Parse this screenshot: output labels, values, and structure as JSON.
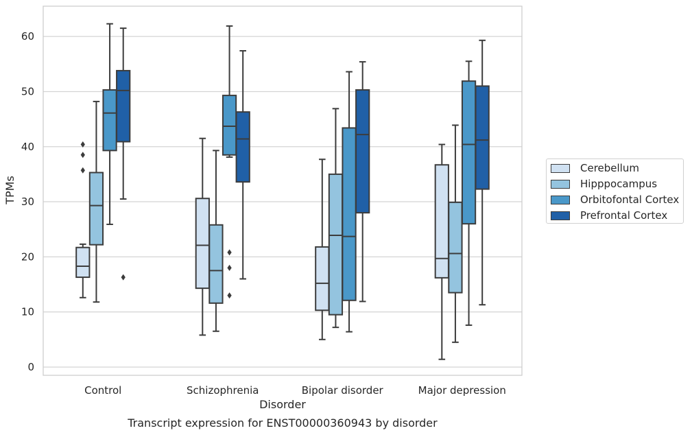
{
  "chart_data": {
    "type": "box",
    "caption": "Transcript expression for ENST00000360943 by disorder",
    "xlabel": "Disorder",
    "ylabel": "TPMs",
    "ylim": [
      -1.5,
      65.5
    ],
    "yticks": [
      0,
      10,
      20,
      30,
      40,
      50,
      60
    ],
    "grid": "horizontal",
    "legend_position": "right",
    "categories": [
      "Control",
      "Schizophrenia",
      "Bipolar disorder",
      "Major depression"
    ],
    "series": [
      {
        "name": "Cerebellum",
        "color": "#d0e1f2",
        "boxes": [
          {
            "whisker_low": 12.6,
            "q1": 16.3,
            "median": 18.3,
            "q3": 21.7,
            "whisker_high": 22.3,
            "outliers": [
              35.7,
              38.5,
              40.4
            ]
          },
          {
            "whisker_low": 5.8,
            "q1": 14.3,
            "median": 22.1,
            "q3": 30.6,
            "whisker_high": 41.5,
            "outliers": []
          },
          {
            "whisker_low": 5.0,
            "q1": 10.3,
            "median": 15.2,
            "q3": 21.8,
            "whisker_high": 37.7,
            "outliers": []
          },
          {
            "whisker_low": 1.4,
            "q1": 16.2,
            "median": 19.7,
            "q3": 36.7,
            "whisker_high": 40.4,
            "outliers": []
          }
        ]
      },
      {
        "name": "Hipppocampus",
        "color": "#94c4df",
        "boxes": [
          {
            "whisker_low": 11.8,
            "q1": 22.2,
            "median": 29.3,
            "q3": 35.3,
            "whisker_high": 48.2,
            "outliers": []
          },
          {
            "whisker_low": 6.5,
            "q1": 11.6,
            "median": 17.5,
            "q3": 25.8,
            "whisker_high": 39.3,
            "outliers": []
          },
          {
            "whisker_low": 7.2,
            "q1": 9.5,
            "median": 23.9,
            "q3": 35.0,
            "whisker_high": 46.9,
            "outliers": []
          },
          {
            "whisker_low": 4.5,
            "q1": 13.5,
            "median": 20.6,
            "q3": 29.9,
            "whisker_high": 43.9,
            "outliers": []
          }
        ]
      },
      {
        "name": "Orbitofontal Cortex",
        "color": "#4a98c9",
        "boxes": [
          {
            "whisker_low": 25.9,
            "q1": 39.3,
            "median": 46.1,
            "q3": 50.3,
            "whisker_high": 62.3,
            "outliers": []
          },
          {
            "whisker_low": 38.1,
            "q1": 38.5,
            "median": 43.7,
            "q3": 49.3,
            "whisker_high": 61.9,
            "outliers": [
              13.0,
              18.0,
              20.8
            ]
          },
          {
            "whisker_low": 6.4,
            "q1": 12.1,
            "median": 23.7,
            "q3": 43.4,
            "whisker_high": 53.6,
            "outliers": []
          },
          {
            "whisker_low": 7.6,
            "q1": 26.0,
            "median": 40.4,
            "q3": 51.9,
            "whisker_high": 55.5,
            "outliers": []
          }
        ]
      },
      {
        "name": "Prefrontal Cortex",
        "color": "#2060a7",
        "boxes": [
          {
            "whisker_low": 30.5,
            "q1": 40.9,
            "median": 50.2,
            "q3": 53.8,
            "whisker_high": 61.5,
            "outliers": [
              16.3
            ]
          },
          {
            "whisker_low": 16.0,
            "q1": 33.6,
            "median": 41.4,
            "q3": 46.3,
            "whisker_high": 57.4,
            "outliers": []
          },
          {
            "whisker_low": 11.9,
            "q1": 28.0,
            "median": 42.2,
            "q3": 50.3,
            "whisker_high": 55.4,
            "outliers": []
          },
          {
            "whisker_low": 11.3,
            "q1": 32.3,
            "median": 41.2,
            "q3": 51.0,
            "whisker_high": 59.3,
            "outliers": []
          }
        ]
      }
    ]
  }
}
